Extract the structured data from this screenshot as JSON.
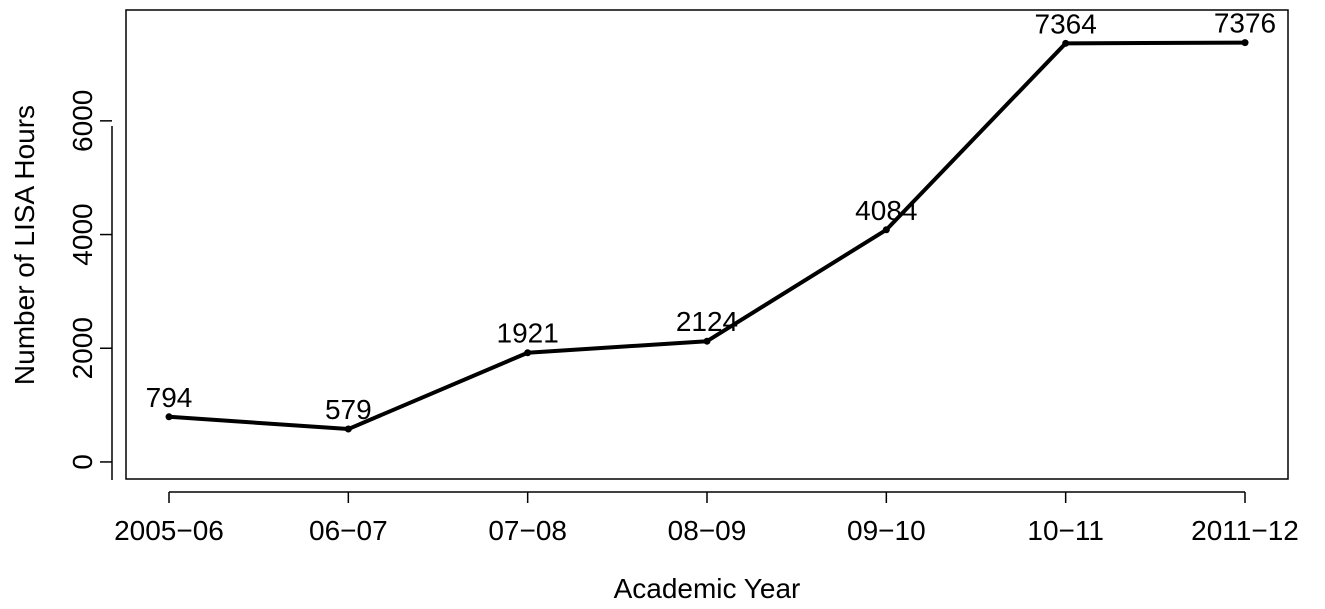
{
  "chart_data": {
    "type": "line",
    "title": "",
    "xlabel": "Academic Year",
    "ylabel": "Number of LISA Hours",
    "categories": [
      "2005−06",
      "06−07",
      "07−08",
      "08−09",
      "09−10",
      "10−11",
      "2011−12"
    ],
    "values": [
      794,
      579,
      1921,
      2124,
      4084,
      7364,
      7376
    ],
    "data_labels": [
      "794",
      "579",
      "1921",
      "2124",
      "4084",
      "7364",
      "7376"
    ],
    "y_ticks": [
      0,
      2000,
      4000,
      6000
    ],
    "y_tick_labels": [
      "0",
      "2000",
      "4000",
      "6000"
    ],
    "ylim": [
      -300,
      7950
    ],
    "grid": false,
    "line_color": "#000000"
  }
}
